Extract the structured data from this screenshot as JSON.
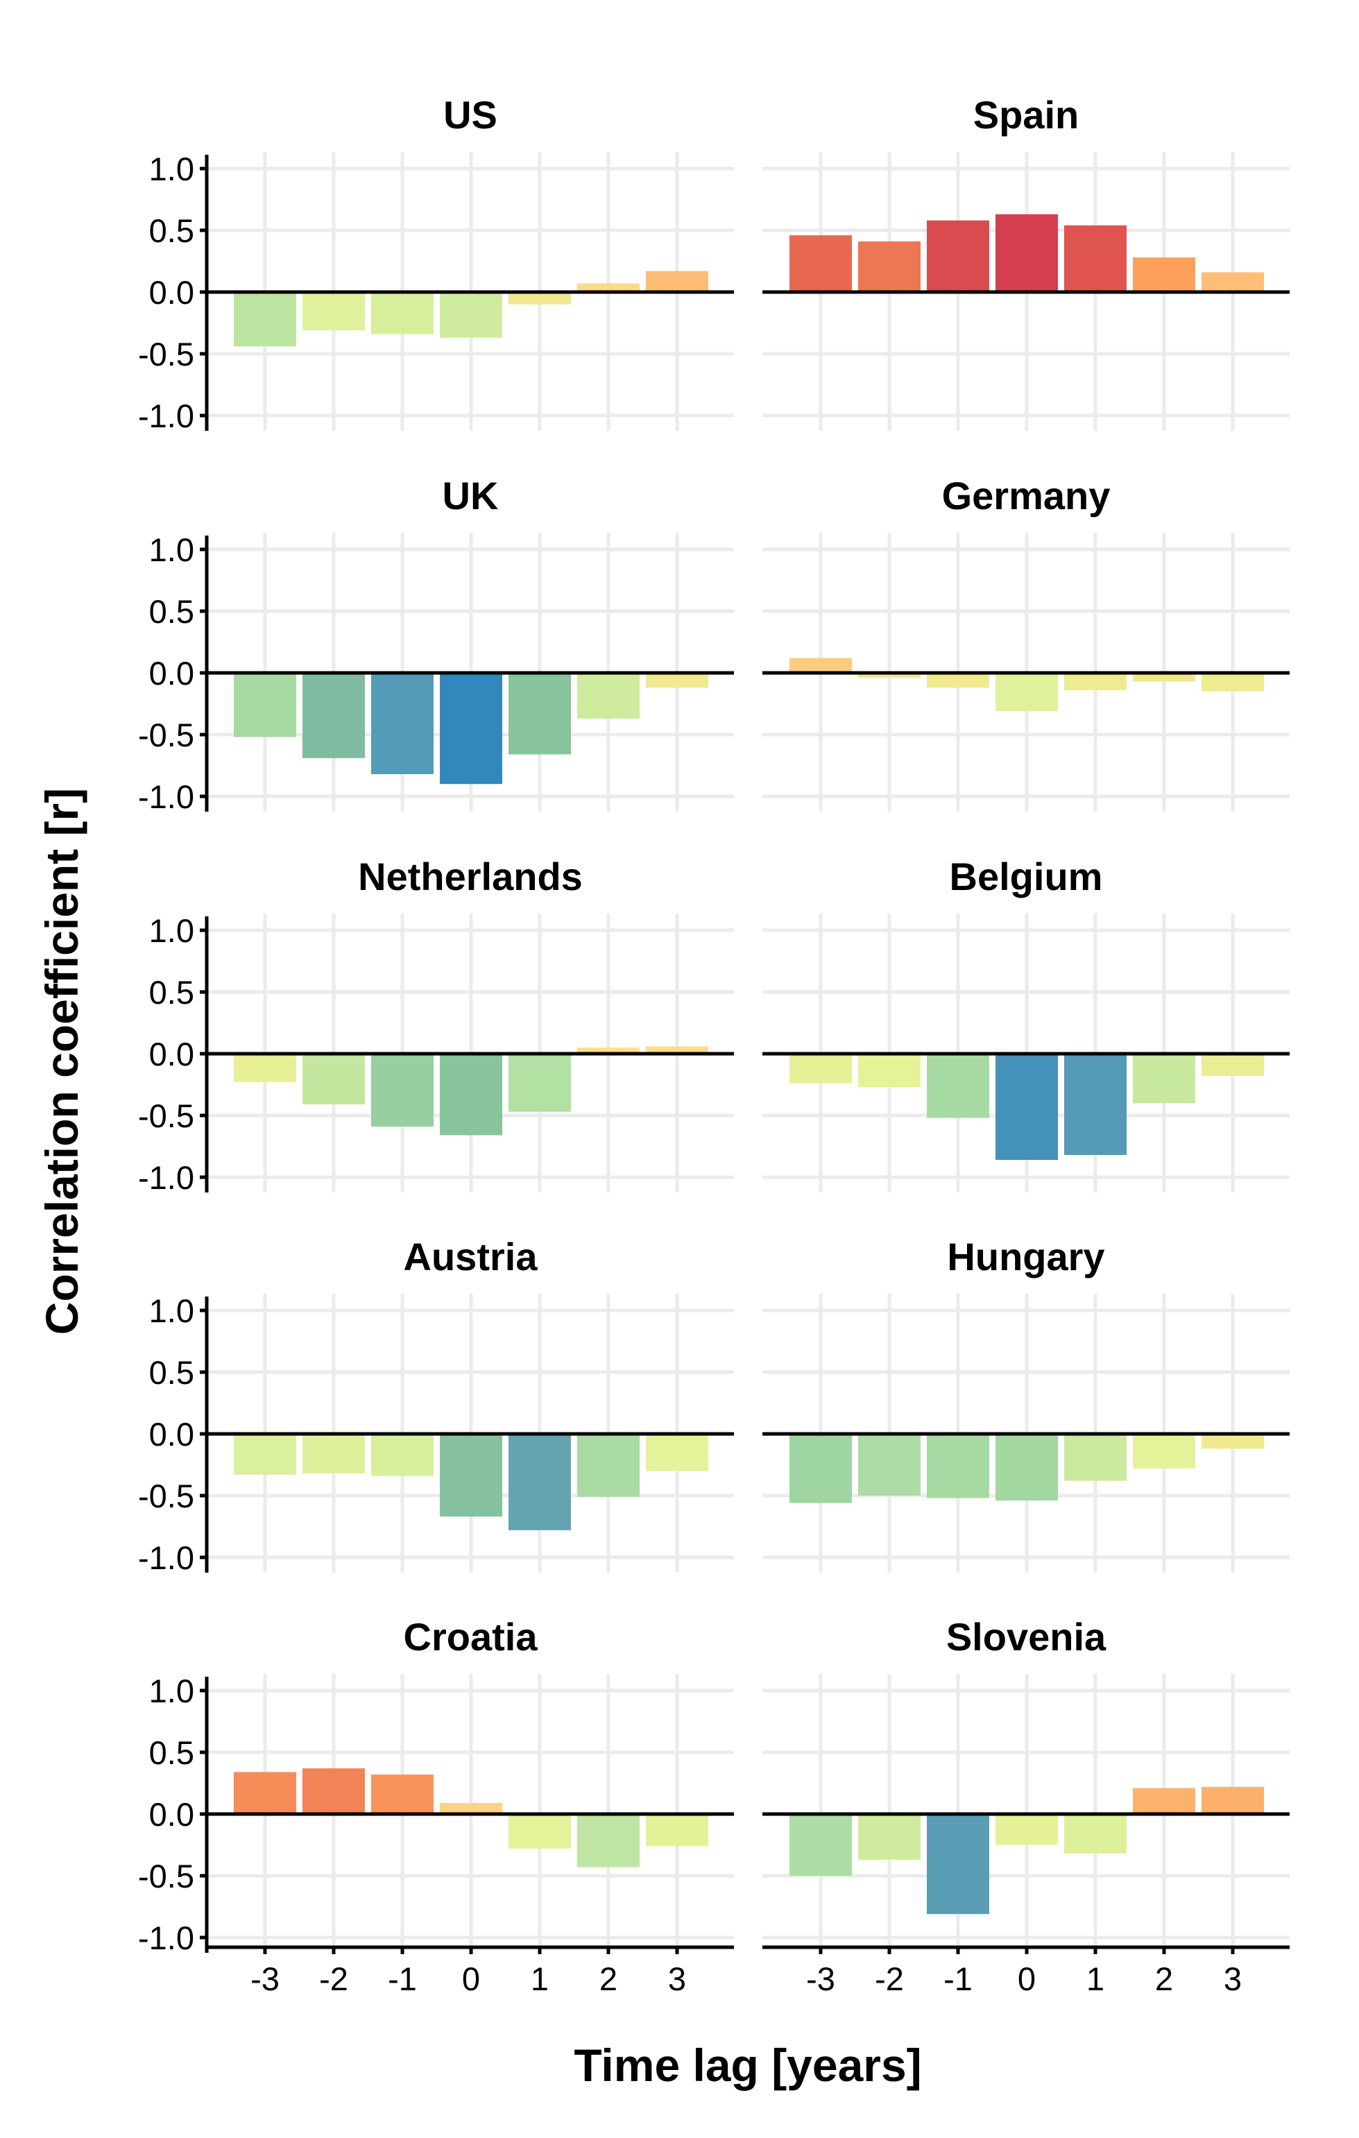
{
  "chart_data": {
    "type": "bar",
    "xlabel": "Time lag [years]",
    "ylabel": "Correlation coefficient [r]",
    "ylim": [
      -1.0,
      1.0
    ],
    "yticks": [
      "1.0",
      "0.5",
      "0.0",
      "-0.5",
      "-1.0"
    ],
    "ytick_values": [
      1.0,
      0.5,
      0.0,
      -0.5,
      -1.0
    ],
    "categories": [
      "-3",
      "-2",
      "-1",
      "0",
      "1",
      "2",
      "3"
    ],
    "grid": true,
    "color_scale": {
      "stops": [
        -0.9,
        -0.8,
        -0.66,
        -0.5,
        -0.3,
        -0.1,
        0.05,
        0.15,
        0.28,
        0.45,
        0.63
      ],
      "colors": [
        "#3288bd",
        "#5e9fb4",
        "#88c49c",
        "#abdda4",
        "#e2f39a",
        "#f1e98e",
        "#fde08b",
        "#fdc27a",
        "#fca05c",
        "#ea6a50",
        "#d53e4f"
      ]
    },
    "panels": [
      {
        "name": "US",
        "values": [
          -0.44,
          -0.31,
          -0.34,
          -0.37,
          -0.1,
          0.07,
          0.17
        ]
      },
      {
        "name": "Spain",
        "values": [
          0.46,
          0.41,
          0.58,
          0.63,
          0.54,
          0.28,
          0.16
        ]
      },
      {
        "name": "UK",
        "values": [
          -0.52,
          -0.69,
          -0.82,
          -0.9,
          -0.66,
          -0.37,
          -0.12
        ]
      },
      {
        "name": "Germany",
        "values": [
          0.12,
          -0.04,
          -0.12,
          -0.31,
          -0.14,
          -0.07,
          -0.15
        ]
      },
      {
        "name": "Netherlands",
        "values": [
          -0.23,
          -0.41,
          -0.59,
          -0.66,
          -0.47,
          0.05,
          0.06
        ]
      },
      {
        "name": "Belgium",
        "values": [
          -0.24,
          -0.27,
          -0.52,
          -0.86,
          -0.82,
          -0.4,
          -0.18
        ]
      },
      {
        "name": "Austria",
        "values": [
          -0.33,
          -0.32,
          -0.34,
          -0.67,
          -0.78,
          -0.51,
          -0.3
        ]
      },
      {
        "name": "Hungary",
        "values": [
          -0.56,
          -0.5,
          -0.52,
          -0.54,
          -0.38,
          -0.28,
          -0.12
        ]
      },
      {
        "name": "Croatia",
        "values": [
          0.34,
          0.37,
          0.32,
          0.09,
          -0.28,
          -0.43,
          -0.26
        ]
      },
      {
        "name": "Slovenia",
        "values": [
          -0.5,
          -0.37,
          -0.81,
          -0.25,
          -0.32,
          0.21,
          0.22
        ]
      }
    ]
  }
}
